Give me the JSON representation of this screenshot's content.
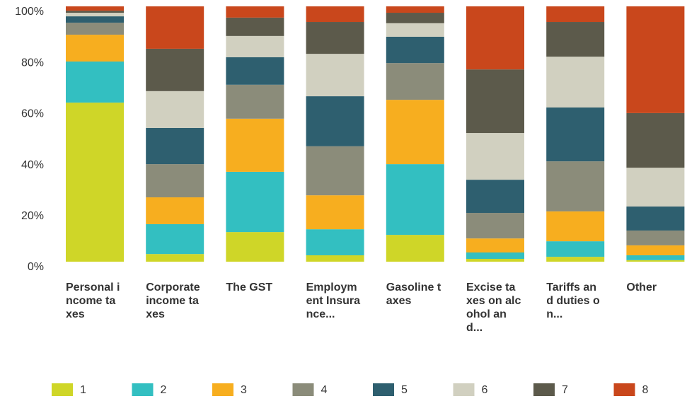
{
  "chart_data": {
    "type": "stacked_bar",
    "categories": [
      "Personal income taxes",
      "Corporate income taxes",
      "The GST",
      "Employment Insurance...",
      "Gasoline taxes",
      "Excise taxes on alcohol and...",
      "Tariffs and duties on...",
      "Other"
    ],
    "series": [
      {
        "name": "1",
        "color": "#cfd628",
        "values": [
          62.3,
          3.0,
          11.6,
          2.5,
          10.5,
          1.1,
          1.9,
          0.6
        ]
      },
      {
        "name": "2",
        "color": "#33bfc1",
        "values": [
          16.1,
          11.7,
          23.6,
          10.2,
          27.7,
          2.5,
          6.1,
          1.9
        ]
      },
      {
        "name": "3",
        "color": "#f7ae1f",
        "values": [
          10.5,
          10.5,
          20.8,
          13.3,
          25.2,
          5.5,
          11.7,
          3.9
        ]
      },
      {
        "name": "4",
        "color": "#8b8c7a",
        "values": [
          4.7,
          13.0,
          13.3,
          19.2,
          14.4,
          10.0,
          19.6,
          5.8
        ]
      },
      {
        "name": "5",
        "color": "#2e5f6f",
        "values": [
          2.5,
          14.2,
          10.8,
          19.6,
          10.3,
          13.0,
          21.1,
          9.4
        ]
      },
      {
        "name": "6",
        "color": "#d1d0c0",
        "values": [
          1.4,
          14.4,
          8.3,
          16.6,
          5.3,
          18.3,
          19.9,
          15.2
        ]
      },
      {
        "name": "7",
        "color": "#5c5a4b",
        "values": [
          0.8,
          16.6,
          7.2,
          12.5,
          4.1,
          24.9,
          13.6,
          21.4
        ]
      },
      {
        "name": "8",
        "color": "#c9471c",
        "values": [
          1.7,
          16.6,
          4.4,
          6.1,
          2.5,
          24.7,
          6.1,
          41.8
        ]
      }
    ],
    "ylim": [
      0,
      100
    ],
    "yticks": [
      {
        "value": 0,
        "label": "0%"
      },
      {
        "value": 20,
        "label": "20%"
      },
      {
        "value": 40,
        "label": "40%"
      },
      {
        "value": 60,
        "label": "60%"
      },
      {
        "value": 80,
        "label": "80%"
      },
      {
        "value": 100,
        "label": "100%"
      }
    ],
    "legend": "bottom"
  }
}
